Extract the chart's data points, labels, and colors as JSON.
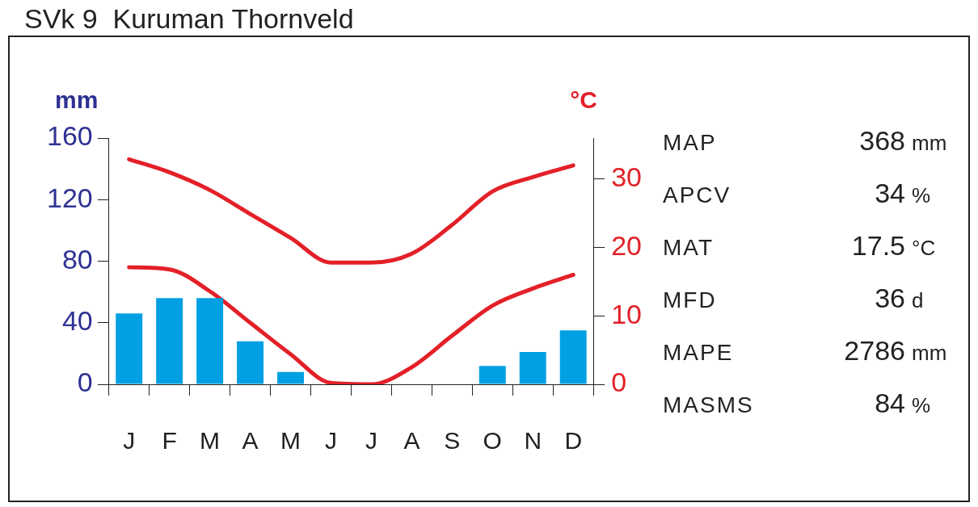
{
  "chart_data": {
    "type": "bar",
    "title": "SVk 9  Kuruman Thornveld",
    "ylabel": "mm",
    "y2label": "°C",
    "categories": [
      "J",
      "F",
      "M",
      "A",
      "M",
      "J",
      "J",
      "A",
      "S",
      "O",
      "N",
      "D"
    ],
    "series": [
      {
        "color": "#00a0e3",
        "values": [
          46,
          56,
          56,
          28,
          8,
          0,
          0,
          0,
          0,
          12,
          21,
          35
        ]
      },
      {
        "type": "line",
        "axis": "y2",
        "color": "#e32028",
        "values": [
          32.9,
          31.0,
          28.4,
          24.9,
          21.4,
          17.8,
          17.8,
          19.1,
          23.3,
          28.2,
          30.3,
          32.0
        ]
      },
      {
        "type": "line",
        "axis": "y2",
        "color": "#e32028",
        "values": [
          17.1,
          16.8,
          13.6,
          9.0,
          4.4,
          0.2,
          0,
          2.5,
          7.1,
          11.5,
          14.0,
          16.0
        ]
      }
    ],
    "ylim": [
      0,
      160
    ],
    "yticks": [
      0,
      40,
      80,
      120,
      160
    ],
    "y2lim": [
      0,
      36
    ],
    "y2ticks": [
      0,
      10,
      20,
      30
    ],
    "grid": false,
    "legend": false,
    "marker": "none",
    "line_style": "solid",
    "annotations": [
      "MAP 368 mm",
      "APCV 34 %",
      "MAT 17.5 °C",
      "MFD 36 d",
      "MAPE 2786 mm",
      "MASMS 84 %"
    ]
  }
}
